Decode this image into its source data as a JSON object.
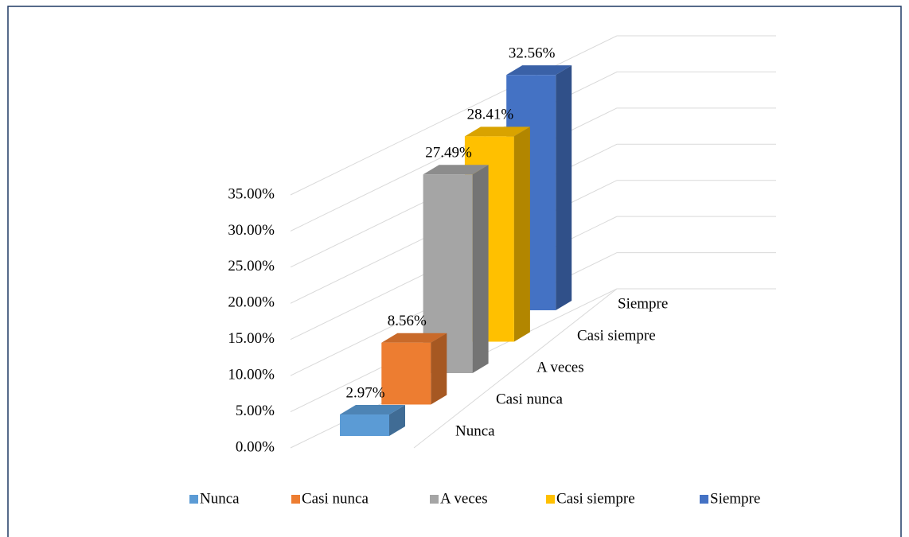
{
  "chart_data": {
    "type": "bar3d",
    "categories": [
      "Nunca",
      "Casi nunca",
      "A veces",
      "Casi siempre",
      "Siempre"
    ],
    "series": [
      {
        "name": "Nunca",
        "color": "#5b9bd5"
      },
      {
        "name": "Casi nunca",
        "color": "#ed7d31"
      },
      {
        "name": "A veces",
        "color": "#a5a5a5"
      },
      {
        "name": "Casi siempre",
        "color": "#ffc000"
      },
      {
        "name": "Siempre",
        "color": "#4472c4"
      }
    ],
    "values": [
      2.97,
      8.56,
      27.49,
      28.41,
      32.56
    ],
    "value_labels": [
      "2.97%",
      "8.56%",
      "27.49%",
      "28.41%",
      "32.56%"
    ],
    "ylim": [
      0,
      35
    ],
    "yticks": [
      {
        "value": 0,
        "label": "0.00%"
      },
      {
        "value": 5,
        "label": "5.00%"
      },
      {
        "value": 10,
        "label": "10.00%"
      },
      {
        "value": 15,
        "label": "15.00%"
      },
      {
        "value": 20,
        "label": "20.00%"
      },
      {
        "value": 25,
        "label": "25.00%"
      },
      {
        "value": 30,
        "label": "30.00%"
      },
      {
        "value": 35,
        "label": "35.00%"
      }
    ],
    "grid": true,
    "legend": "bottom"
  }
}
